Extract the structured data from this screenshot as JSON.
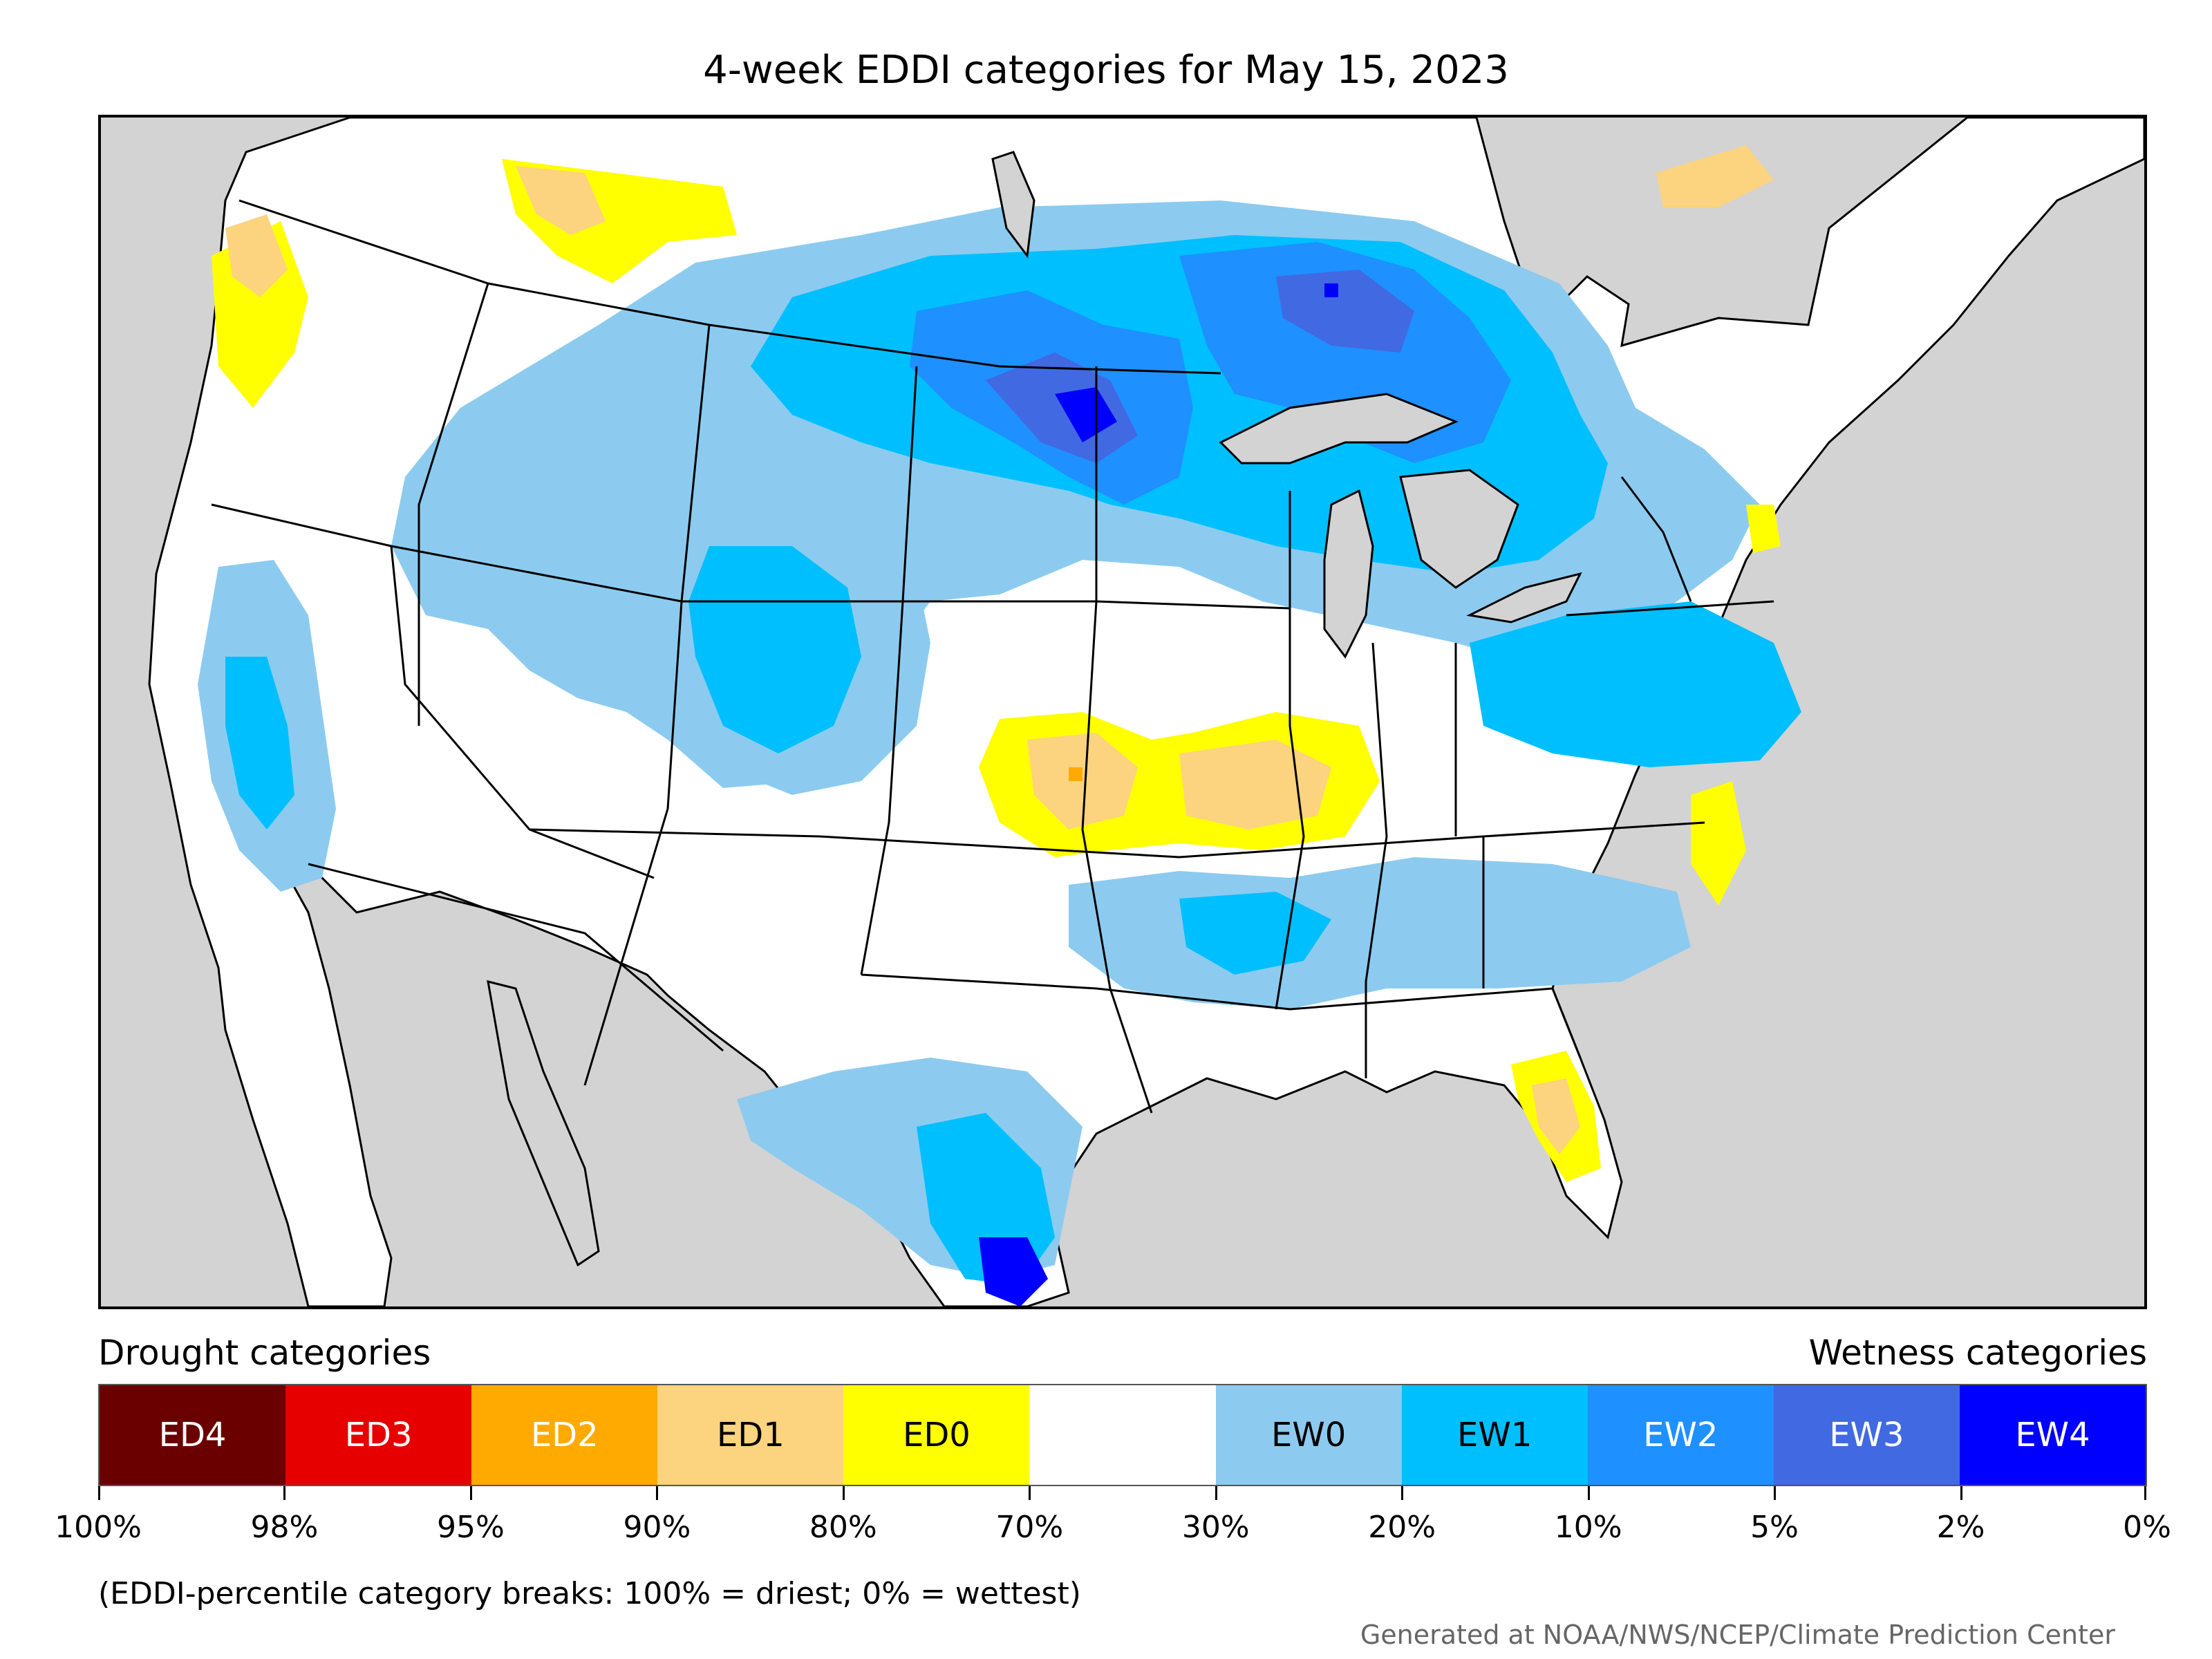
{
  "title": "4-week EDDI categories for May 15, 2023",
  "legend": {
    "drought_heading": "Drought categories",
    "wetness_heading": "Wetness categories",
    "categories": [
      {
        "label": "ED4",
        "color": "#6b0000",
        "text_color": "#ffffff"
      },
      {
        "label": "ED3",
        "color": "#e60000",
        "text_color": "#ffffff"
      },
      {
        "label": "ED2",
        "color": "#ffaa00",
        "text_color": "#ffffff"
      },
      {
        "label": "ED1",
        "color": "#fcd37f",
        "text_color": "#000000"
      },
      {
        "label": "ED0",
        "color": "#ffff00",
        "text_color": "#000000"
      },
      {
        "label": "",
        "color": "#ffffff",
        "text_color": "#000000"
      },
      {
        "label": "EW0",
        "color": "#8ccbef",
        "text_color": "#000000"
      },
      {
        "label": "EW1",
        "color": "#00bfff",
        "text_color": "#000000"
      },
      {
        "label": "EW2",
        "color": "#1e90ff",
        "text_color": "#ffffff"
      },
      {
        "label": "EW3",
        "color": "#4169e1",
        "text_color": "#ffffff"
      },
      {
        "label": "EW4",
        "color": "#0000ff",
        "text_color": "#ffffff"
      }
    ],
    "tick_labels": [
      "100%",
      "98%",
      "95%",
      "90%",
      "80%",
      "70%",
      "30%",
      "20%",
      "10%",
      "5%",
      "2%",
      "0%"
    ]
  },
  "note": "(EDDI-percentile category breaks: 100% = driest; 0% = wettest)",
  "credit": "Generated at NOAA/NWS/NCEP/Climate Prediction Center",
  "map_colors": {
    "ocean": "#d3d3d3",
    "land": "#ffffff",
    "lakes": "#d3d3d3",
    "borders": "#000000"
  }
}
